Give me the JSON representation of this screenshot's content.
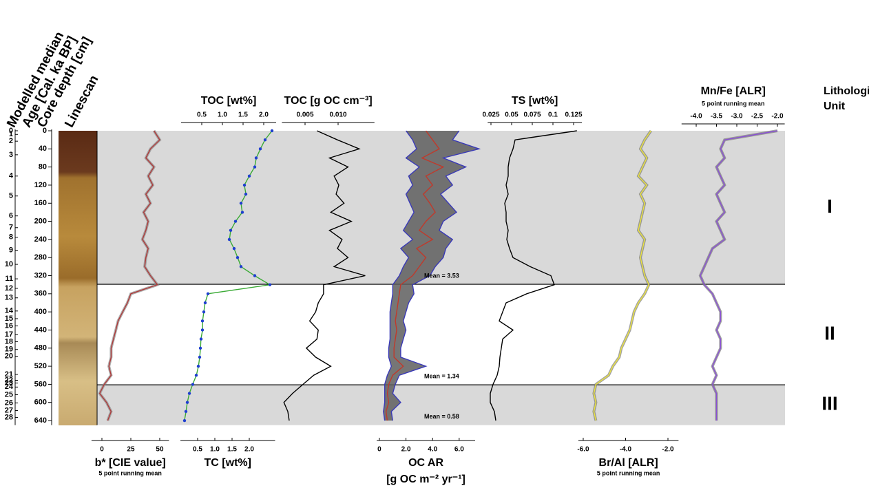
{
  "chart_data": {
    "type": "line",
    "headers": [
      "Modelled median",
      "Age [Cal. ka BP]",
      "Core depth [cm]",
      "Linescan"
    ],
    "lithology_header": [
      "Lithological",
      "Unit"
    ],
    "depth": [
      0,
      20,
      40,
      60,
      80,
      100,
      120,
      140,
      160,
      180,
      200,
      220,
      240,
      260,
      280,
      300,
      320,
      340,
      360,
      380,
      400,
      420,
      440,
      460,
      480,
      500,
      520,
      540,
      560,
      580,
      600,
      620,
      640
    ],
    "ylim": [
      0,
      650
    ],
    "yticks": [
      0,
      40,
      80,
      120,
      160,
      200,
      240,
      280,
      320,
      360,
      400,
      440,
      480,
      520,
      560,
      600,
      640
    ],
    "age_ticks": [
      {
        "value": 0,
        "label": "0"
      },
      {
        "value": 8,
        "label": "1"
      },
      {
        "value": 23,
        "label": "2"
      },
      {
        "value": 53,
        "label": "3"
      },
      {
        "value": 100,
        "label": "4"
      },
      {
        "value": 144,
        "label": "5"
      },
      {
        "value": 188,
        "label": "6"
      },
      {
        "value": 214,
        "label": "7"
      },
      {
        "value": 235,
        "label": "8"
      },
      {
        "value": 264,
        "label": "9"
      },
      {
        "value": 295,
        "label": "10"
      },
      {
        "value": 327,
        "label": "11"
      },
      {
        "value": 348,
        "label": "12"
      },
      {
        "value": 369,
        "label": "13"
      },
      {
        "value": 398,
        "label": "14"
      },
      {
        "value": 415,
        "label": "15"
      },
      {
        "value": 431,
        "label": "16"
      },
      {
        "value": 450,
        "label": "17"
      },
      {
        "value": 466,
        "label": "18"
      },
      {
        "value": 483,
        "label": "19"
      },
      {
        "value": 498,
        "label": "20"
      },
      {
        "value": 538,
        "label": "21"
      },
      {
        "value": 551,
        "label": "22"
      },
      {
        "value": 557,
        "label": "23"
      },
      {
        "value": 566,
        "label": "24"
      },
      {
        "value": 583,
        "label": "25"
      },
      {
        "value": 601,
        "label": "26"
      },
      {
        "value": 618,
        "label": "27"
      },
      {
        "value": 633,
        "label": "28"
      }
    ],
    "units": [
      {
        "label": "I",
        "top": 0,
        "bottom": 339,
        "fill": "#d9d9d9"
      },
      {
        "label": "II",
        "top": 339,
        "bottom": 561,
        "fill": "#ffffff"
      },
      {
        "label": "III",
        "top": 561,
        "bottom": 650,
        "fill": "#d9d9d9"
      }
    ],
    "panels": [
      {
        "bottom": {
          "label": "b* [CIE value]",
          "label_color": "#000000",
          "note": "5 point running mean",
          "note_color": "#a0322e",
          "xlim": [
            -9,
            58
          ],
          "xticks": [
            0,
            25,
            50
          ]
        },
        "series": [
          {
            "axis": "bottom",
            "color": "#b03a3a",
            "raw_color": "#8c8c8c",
            "values": [
              45,
              50,
              42,
              38,
              45,
              40,
              44,
              38,
              42,
              36,
              40,
              38,
              35,
              40,
              38,
              37,
              42,
              48,
              25,
              22,
              18,
              14,
              12,
              10,
              8,
              8,
              6,
              8,
              2,
              -2,
              4,
              8,
              5
            ]
          }
        ]
      },
      {
        "top": {
          "label": "TOC [wt%]",
          "label_color": "#3aaa35",
          "xlim": [
            0,
            2.3
          ],
          "xticks": [
            0.5,
            {
              "value": 1,
              "label": "1.0"
            },
            1.5,
            {
              "value": 2,
              "label": "2.0"
            }
          ]
        },
        "bottom": {
          "label": "TC [wt%]",
          "label_color": "#1f3fd0",
          "xlim": [
            0,
            2.75
          ],
          "xticks": [
            0.5,
            {
              "value": 1,
              "label": "1.0"
            },
            1.5,
            {
              "value": 2,
              "label": "2.0"
            }
          ]
        },
        "series": [
          {
            "axis": "top",
            "color": "#3aaa35",
            "values": [
              2.2,
              2.03,
              1.92,
              1.82,
              1.78,
              1.65,
              1.53,
              1.57,
              1.45,
              1.48,
              1.32,
              1.2,
              1.17,
              1.28,
              1.37,
              1.45,
              1.78,
              2.15,
              0.65,
              0.58,
              0.55,
              0.52,
              0.52,
              0.48,
              0.47,
              0.45,
              0.42,
              0.37,
              0.28,
              0.2,
              0.15,
              0.12,
              0.08
            ]
          },
          {
            "axis": "bottom",
            "color": "#1f3fd0",
            "markers": true,
            "values": [
              2.66,
              2.46,
              2.32,
              2.2,
              2.16,
              2.0,
              1.86,
              1.9,
              1.76,
              1.8,
              1.6,
              1.46,
              1.42,
              1.56,
              1.66,
              1.76,
              2.16,
              2.6,
              0.8,
              0.72,
              0.68,
              0.64,
              0.64,
              0.6,
              0.58,
              0.56,
              0.52,
              0.46,
              0.36,
              0.26,
              0.2,
              0.16,
              0.12
            ]
          }
        ]
      },
      {
        "top": {
          "label": "TOC [g OC cm⁻³]",
          "label_color": "#000000",
          "xlim": [
            0.0015,
            0.0155
          ],
          "xticks": [
            0.005,
            {
              "value": 0.01,
              "label": "0.010"
            }
          ]
        },
        "series": [
          {
            "axis": "top",
            "color": "#000000",
            "values": [
              0.0068,
              0.0099,
              0.0132,
              0.0087,
              0.0115,
              0.0094,
              0.0101,
              0.0097,
              0.0109,
              0.0089,
              0.012,
              0.0087,
              0.0106,
              0.0099,
              0.0115,
              0.0094,
              0.0141,
              0.0078,
              0.0078,
              0.007,
              0.0066,
              0.0057,
              0.007,
              0.0068,
              0.0052,
              0.0066,
              0.0089,
              0.0063,
              0.0047,
              0.0031,
              0.0018,
              0.0024,
              0.0026
            ]
          }
        ]
      },
      {
        "type": "band",
        "band_color": "#5e5e5e",
        "bottom": {
          "label": "OC AR",
          "label2": "[g OC m⁻² yr⁻¹]",
          "label_color": "#000000",
          "xlim": [
            -0.2,
            7.2
          ],
          "xticks": [
            0,
            {
              "value": 2,
              "label": "2.0"
            },
            {
              "value": 4,
              "label": "4.0"
            },
            {
              "value": 6,
              "label": "6.0"
            }
          ]
        },
        "annotations": [
          "Mean = 3.53",
          "Mean = 1.34",
          "Mean = 0.58"
        ],
        "series": [
          {
            "axis": "bottom",
            "color": "#3a3ab8",
            "values": [
              2.0,
              2.5,
              2.8,
              2.0,
              3.0,
              2.2,
              2.5,
              2.0,
              2.3,
              2.6,
              2.2,
              1.8,
              2.5,
              1.6,
              2.2,
              1.8,
              1.5,
              1.0,
              1.0,
              0.9,
              0.8,
              0.8,
              0.8,
              0.8,
              0.7,
              0.7,
              0.9,
              0.6,
              0.4,
              0.4,
              0.4,
              0.3,
              0.4
            ]
          },
          {
            "axis": "bottom",
            "color": "#c0392b",
            "values": [
              3.5,
              4.0,
              4.5,
              3.2,
              4.8,
              3.5,
              4.0,
              3.3,
              3.8,
              4.2,
              3.5,
              3.0,
              4.0,
              2.8,
              3.5,
              3.0,
              2.5,
              1.6,
              1.5,
              1.4,
              1.3,
              1.2,
              1.3,
              1.2,
              1.1,
              1.1,
              1.8,
              1.0,
              0.7,
              0.6,
              0.7,
              0.5,
              0.6
            ]
          },
          {
            "axis": "bottom",
            "color": "#3a3ab8",
            "values": [
              6.0,
              5.5,
              7.5,
              4.8,
              6.5,
              5.0,
              5.5,
              4.6,
              5.2,
              5.8,
              4.8,
              4.5,
              5.5,
              5.0,
              4.8,
              4.2,
              3.8,
              2.5,
              2.6,
              2.2,
              2.0,
              1.8,
              2.0,
              1.8,
              1.6,
              1.6,
              3.5,
              1.5,
              1.2,
              1.0,
              1.6,
              0.9,
              1.0
            ]
          }
        ]
      },
      {
        "top": {
          "label": "TS [wt%]",
          "label_color": "#000000",
          "xlim": [
            0.021,
            0.135
          ],
          "xticks": [
            0.025,
            0.05,
            0.075,
            0.1,
            0.125
          ]
        },
        "series": [
          {
            "axis": "top",
            "color": "#000000",
            "values": [
              0.129,
              0.0542,
              0.0517,
              0.0475,
              0.0458,
              0.0458,
              0.0433,
              0.0458,
              0.0417,
              0.0433,
              0.0433,
              0.0458,
              0.0442,
              0.0475,
              0.0517,
              0.0725,
              0.0975,
              0.1017,
              0.0683,
              0.0433,
              0.0392,
              0.035,
              0.0517,
              0.0392,
              0.0375,
              0.0358,
              0.035,
              0.0325,
              0.0275,
              0.0242,
              0.0242,
              0.0292,
              0.0308
            ]
          }
        ]
      },
      {
        "bottom": {
          "label": "Br/Al [ALR]",
          "label_color": "#000000",
          "note": "5 point running mean",
          "note_color": "#d8cc30",
          "xlim": [
            -6.23,
            -1.5
          ],
          "xticks": [
            {
              "value": -6,
              "label": "-6.0"
            },
            {
              "value": -4,
              "label": "-4.0"
            },
            {
              "value": -2,
              "label": "-2.0"
            }
          ]
        },
        "series": [
          {
            "axis": "bottom",
            "color": "#ece43c",
            "raw_color": "#7a7a7a",
            "values": [
              -2.8,
              -3.1,
              -3.3,
              -3.0,
              -3.2,
              -3.4,
              -3.0,
              -3.3,
              -3.1,
              -3.2,
              -3.3,
              -3.4,
              -3.1,
              -3.2,
              -3.3,
              -3.2,
              -3.1,
              -2.9,
              -3.1,
              -3.4,
              -3.6,
              -3.7,
              -3.8,
              -4.0,
              -4.2,
              -4.3,
              -4.6,
              -4.8,
              -5.4,
              -5.5,
              -5.4,
              -5.5,
              -5.4
            ]
          }
        ]
      },
      {
        "top": {
          "label": "Mn/Fe [ALR]",
          "label_color": "#000000",
          "note": "5 point running mean",
          "note_color": "#e020c0",
          "xlim": [
            -4.36,
            -1.82
          ],
          "xticks": [
            {
              "value": -4,
              "label": "-4.0"
            },
            -3.5,
            {
              "value": -3,
              "label": "-3.0"
            },
            -2.5,
            {
              "value": -2,
              "label": "-2.0"
            }
          ]
        },
        "series": [
          {
            "axis": "top",
            "color": "#8a4fd6",
            "raw_color": "#7a7a7a",
            "values": [
              -2.0,
              -3.3,
              -3.4,
              -3.3,
              -3.5,
              -3.4,
              -3.3,
              -3.5,
              -3.4,
              -3.3,
              -3.5,
              -3.4,
              -3.3,
              -3.6,
              -3.7,
              -3.8,
              -3.9,
              -3.8,
              -3.6,
              -3.5,
              -3.4,
              -3.4,
              -3.5,
              -3.4,
              -3.4,
              -3.5,
              -3.6,
              -3.5,
              -3.6,
              -3.5,
              -3.5,
              -3.5,
              -3.5
            ]
          }
        ]
      }
    ]
  }
}
